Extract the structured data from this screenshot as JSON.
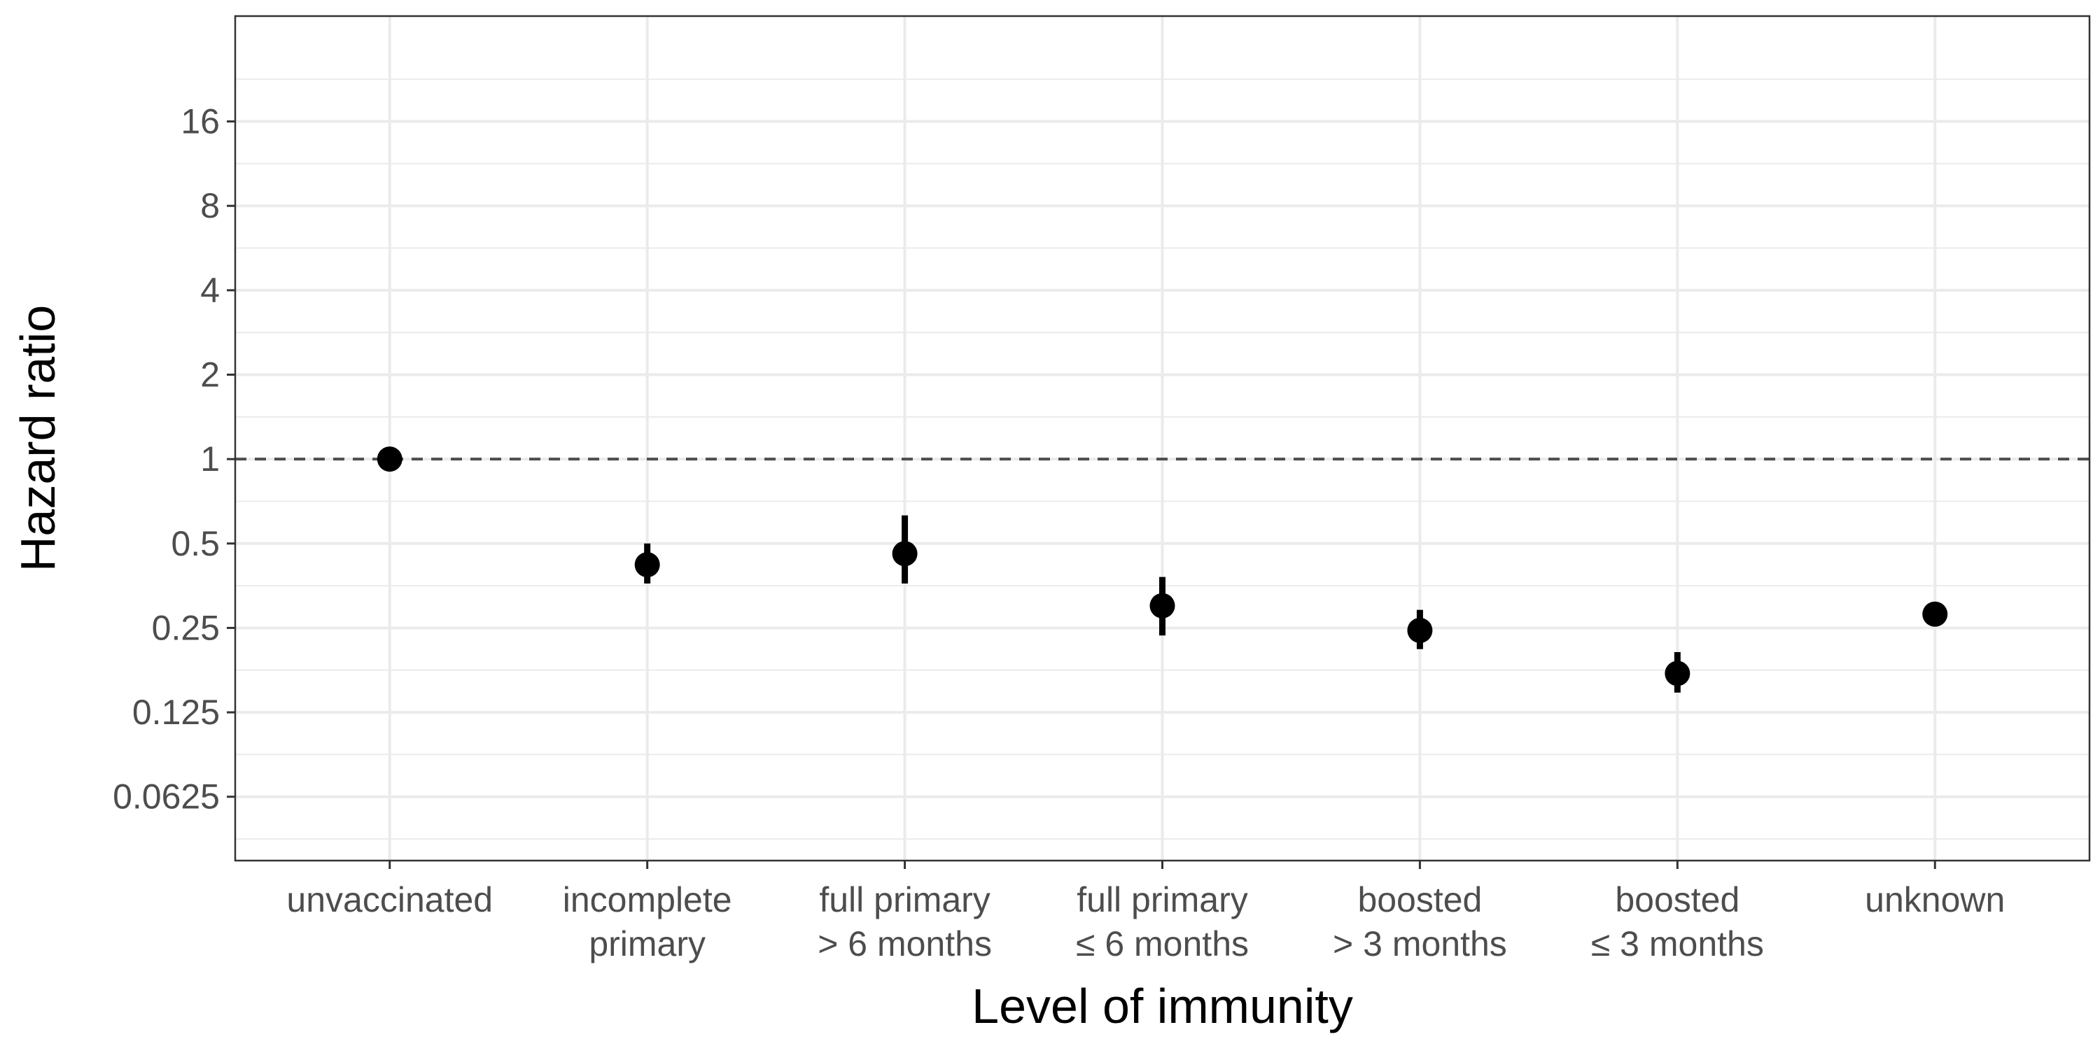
{
  "chart_data": {
    "type": "scatter",
    "xlabel": "Level of immunity",
    "ylabel": "Hazard ratio",
    "y_scale": "log2",
    "ylim": [
      0.037,
      38
    ],
    "y_ticks": [
      {
        "value": 0.0625,
        "label": "0.0625"
      },
      {
        "value": 0.125,
        "label": "0.125"
      },
      {
        "value": 0.25,
        "label": "0.25"
      },
      {
        "value": 0.5,
        "label": "0.5"
      },
      {
        "value": 1,
        "label": "1"
      },
      {
        "value": 2,
        "label": "2"
      },
      {
        "value": 4,
        "label": "4"
      },
      {
        "value": 8,
        "label": "8"
      },
      {
        "value": 16,
        "label": "16"
      }
    ],
    "categories": [
      [
        "unvaccinated"
      ],
      [
        "incomplete",
        "primary"
      ],
      [
        "full primary",
        "> 6 months"
      ],
      [
        "full primary",
        "≤ 6 months"
      ],
      [
        "boosted",
        "> 3 months"
      ],
      [
        "boosted",
        "≤ 3 months"
      ],
      [
        "unknown"
      ]
    ],
    "points": [
      {
        "estimate": 1.0,
        "lower": 1.0,
        "upper": 1.0
      },
      {
        "estimate": 0.42,
        "lower": 0.36,
        "upper": 0.5
      },
      {
        "estimate": 0.46,
        "lower": 0.36,
        "upper": 0.63
      },
      {
        "estimate": 0.3,
        "lower": 0.235,
        "upper": 0.38
      },
      {
        "estimate": 0.245,
        "lower": 0.21,
        "upper": 0.29
      },
      {
        "estimate": 0.172,
        "lower": 0.147,
        "upper": 0.205
      },
      {
        "estimate": 0.28,
        "lower": 0.28,
        "upper": 0.28
      }
    ],
    "reference_line": {
      "value": 1,
      "style": "dashed"
    },
    "grid": true,
    "legend": "none"
  }
}
